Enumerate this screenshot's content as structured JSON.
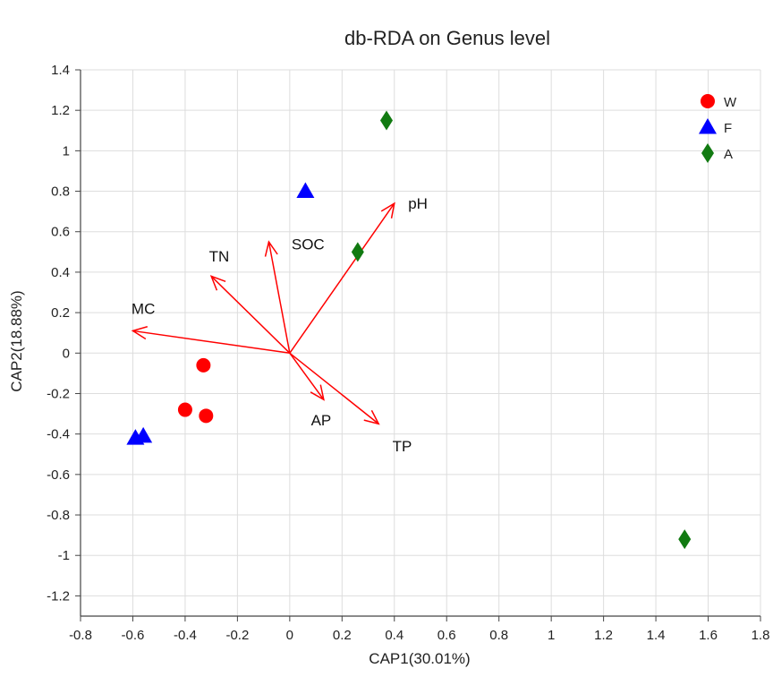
{
  "chart_data": {
    "type": "scatter",
    "title": "db-RDA on Genus level",
    "xlabel": "CAP1(30.01%)",
    "ylabel": "CAP2(18.88%)",
    "xlim": [
      -0.8,
      1.8
    ],
    "ylim": [
      -1.3,
      1.4
    ],
    "xticks": [
      -0.8,
      -0.6,
      -0.4,
      -0.2,
      0,
      0.2,
      0.4,
      0.6,
      0.8,
      1,
      1.2,
      1.4,
      1.6,
      1.8
    ],
    "xtick_labels": [
      "-0.8",
      "-0.6",
      "-0.4",
      "-0.2",
      "0",
      "0.2",
      "0.4",
      "0.6",
      "0.8",
      "1",
      "1.2",
      "1.4",
      "1.6",
      "1.8"
    ],
    "yticks": [
      1.4,
      1.2,
      1,
      0.8,
      0.6,
      0.4,
      0.2,
      0,
      -0.2,
      -0.4,
      -0.6,
      -0.8,
      -1,
      -1.2
    ],
    "ytick_labels": [
      "1.4",
      "1.2",
      "1",
      "0.8",
      "0.6",
      "0.4",
      "0.2",
      "0",
      "-0.2",
      "-0.4",
      "-0.6",
      "-0.8",
      "-1",
      "-1.2"
    ],
    "grid": true,
    "legend_position": "top-right",
    "series": [
      {
        "name": "W",
        "marker": "circle",
        "color": "#ff0000",
        "points": [
          [
            -0.33,
            -0.06
          ],
          [
            -0.4,
            -0.28
          ],
          [
            -0.32,
            -0.31
          ]
        ]
      },
      {
        "name": "F",
        "marker": "triangle",
        "color": "#0000ff",
        "points": [
          [
            0.06,
            0.8
          ],
          [
            -0.59,
            -0.42
          ],
          [
            -0.56,
            -0.41
          ]
        ]
      },
      {
        "name": "A",
        "marker": "diamond",
        "color": "#117a11",
        "points": [
          [
            0.37,
            1.15
          ],
          [
            0.26,
            0.5
          ],
          [
            1.51,
            -0.92
          ]
        ]
      }
    ],
    "arrows": {
      "color": "#ff0000",
      "items": [
        {
          "label": "pH",
          "x": 0.4,
          "y": 0.74,
          "label_x": 0.49,
          "label_y": 0.74
        },
        {
          "label": "SOC",
          "x": -0.08,
          "y": 0.55,
          "label_x": 0.07,
          "label_y": 0.54
        },
        {
          "label": "TN",
          "x": -0.3,
          "y": 0.38,
          "label_x": -0.27,
          "label_y": 0.48
        },
        {
          "label": "MC",
          "x": -0.6,
          "y": 0.11,
          "label_x": -0.56,
          "label_y": 0.22
        },
        {
          "label": "AP",
          "x": 0.13,
          "y": -0.23,
          "label_x": 0.12,
          "label_y": -0.33
        },
        {
          "label": "TP",
          "x": 0.34,
          "y": -0.35,
          "label_x": 0.43,
          "label_y": -0.46
        }
      ]
    }
  }
}
